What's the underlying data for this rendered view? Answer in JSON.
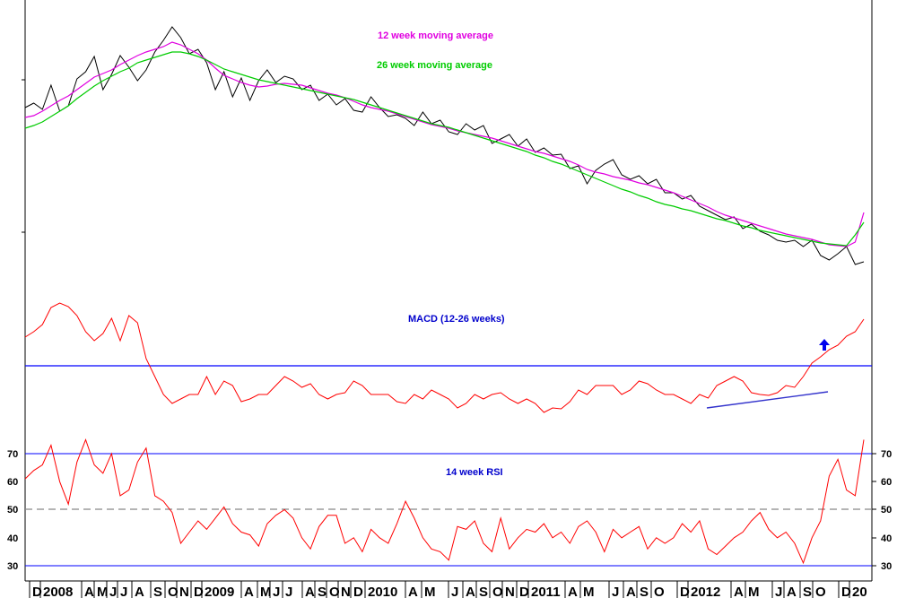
{
  "chart_data": [
    {
      "type": "line",
      "title": "",
      "legend": [
        {
          "text": "12 week moving average",
          "color": "#e000e0"
        },
        {
          "text": "26 week moving average",
          "color": "#00cc00"
        }
      ],
      "series": [
        {
          "color": "#000000",
          "values": [
            120,
            115,
            122,
            95,
            124,
            118,
            88,
            80,
            63,
            100,
            83,
            62,
            75,
            90,
            78,
            58,
            45,
            30,
            42,
            60,
            55,
            70,
            100,
            80,
            108,
            87,
            112,
            90,
            78,
            92,
            85,
            88,
            100,
            95,
            112,
            105,
            117,
            110,
            123,
            125,
            108,
            120,
            130,
            128,
            132,
            140,
            125,
            138,
            134,
            147,
            150,
            138,
            145,
            140,
            160,
            155,
            150,
            163,
            155,
            170,
            165,
            173,
            172,
            188,
            185,
            205,
            190,
            183,
            178,
            195,
            200,
            196,
            205,
            200,
            215,
            215,
            222,
            218,
            230,
            235,
            240,
            245,
            242,
            255,
            250,
            258,
            262,
            268,
            270,
            268,
            275,
            268,
            285,
            290,
            283,
            275,
            295,
            292
          ]
        },
        {
          "color": "#e000e0",
          "values": [
            131,
            129,
            124,
            118,
            112,
            107,
            100,
            93,
            86,
            82,
            78,
            72,
            67,
            62,
            58,
            55,
            52,
            47,
            50,
            55,
            60,
            67,
            76,
            84,
            88,
            92,
            95,
            97,
            96,
            94,
            93,
            94,
            95,
            98,
            101,
            104,
            106,
            109,
            113,
            117,
            120,
            122,
            124,
            127,
            130,
            133,
            136,
            139,
            141,
            143,
            146,
            148,
            150,
            152,
            154,
            157,
            160,
            163,
            166,
            169,
            171,
            174,
            177,
            180,
            184,
            189,
            192,
            194,
            197,
            199,
            201,
            204,
            206,
            209,
            212,
            215,
            219,
            223,
            227,
            231,
            236,
            240,
            243,
            246,
            249,
            252,
            255,
            258,
            261,
            263,
            265,
            267,
            270,
            273,
            274,
            275,
            270,
            237
          ]
        },
        {
          "color": "#00cc00",
          "values": [
            143,
            140,
            136,
            130,
            124,
            118,
            110,
            103,
            96,
            90,
            85,
            80,
            76,
            70,
            67,
            64,
            61,
            58,
            58,
            60,
            63,
            67,
            72,
            77,
            80,
            83,
            86,
            89,
            91,
            93,
            95,
            97,
            99,
            101,
            103,
            105,
            107,
            109,
            111,
            114,
            117,
            120,
            123,
            126,
            129,
            132,
            135,
            138,
            140,
            142,
            145,
            148,
            151,
            154,
            157,
            160,
            163,
            166,
            169,
            173,
            176,
            180,
            183,
            187,
            191,
            195,
            199,
            203,
            207,
            211,
            214,
            218,
            221,
            225,
            228,
            230,
            233,
            235,
            238,
            241,
            244,
            246,
            249,
            252,
            254,
            257,
            259,
            261,
            263,
            265,
            267,
            269,
            271,
            272,
            273,
            274,
            262,
            248
          ]
        }
      ]
    },
    {
      "type": "line",
      "title": "MACD (12-26 weeks)",
      "series": [
        {
          "color": "#ff0000",
          "values": [
            376,
            370,
            362,
            343,
            338,
            342,
            352,
            370,
            380,
            372,
            355,
            380,
            352,
            360,
            400,
            420,
            440,
            450,
            445,
            440,
            440,
            420,
            440,
            425,
            430,
            448,
            445,
            440,
            440,
            430,
            420,
            425,
            432,
            428,
            440,
            445,
            440,
            438,
            425,
            430,
            440,
            440,
            440,
            448,
            450,
            440,
            445,
            435,
            440,
            445,
            455,
            450,
            440,
            445,
            440,
            438,
            445,
            450,
            445,
            450,
            460,
            455,
            456,
            448,
            435,
            440,
            430,
            430,
            430,
            440,
            435,
            425,
            428,
            435,
            440,
            440,
            445,
            450,
            440,
            444,
            430,
            425,
            420,
            425,
            438,
            440,
            441,
            438,
            430,
            432,
            420,
            405,
            398,
            390,
            385,
            375,
            370,
            356
          ]
        }
      ]
    },
    {
      "type": "line",
      "title": "14 week RSI",
      "yticks": [
        "70",
        "60",
        "50",
        "40",
        "30"
      ],
      "series": [
        {
          "color": "#ff0000",
          "values": [
            61,
            64,
            66,
            73,
            60,
            52,
            67,
            75,
            66,
            63,
            70,
            55,
            57,
            67,
            72,
            55,
            53,
            49,
            38,
            42,
            46,
            43,
            47,
            51,
            45,
            42,
            41,
            37,
            45,
            48,
            50,
            47,
            40,
            36,
            44,
            48,
            48,
            38,
            40,
            35,
            43,
            40,
            38,
            45,
            53,
            47,
            40,
            36,
            35,
            32,
            44,
            43,
            46,
            38,
            35,
            47,
            36,
            40,
            43,
            42,
            45,
            40,
            42,
            38,
            44,
            46,
            42,
            35,
            43,
            40,
            42,
            44,
            36,
            40,
            38,
            40,
            45,
            42,
            46,
            36,
            34,
            37,
            40,
            42,
            46,
            49,
            43,
            40,
            42,
            38,
            31,
            40,
            46,
            62,
            68,
            57,
            55,
            75
          ]
        }
      ]
    }
  ],
  "x_axis": {
    "labels": [
      "D",
      "2008",
      "A",
      "M",
      "J",
      "J",
      "A",
      "S",
      "O",
      "N",
      "D",
      "2009",
      "A",
      "M",
      "J",
      "J",
      "A",
      "S",
      "O",
      "N",
      "D",
      "2010",
      "A",
      "M",
      "J",
      "A",
      "S",
      "O",
      "N",
      "D",
      "2011",
      "A",
      "M",
      "J",
      "A",
      "S",
      "O",
      "D",
      "2012",
      "A",
      "M",
      "J",
      "A",
      "S",
      "O",
      "D",
      "20"
    ]
  }
}
